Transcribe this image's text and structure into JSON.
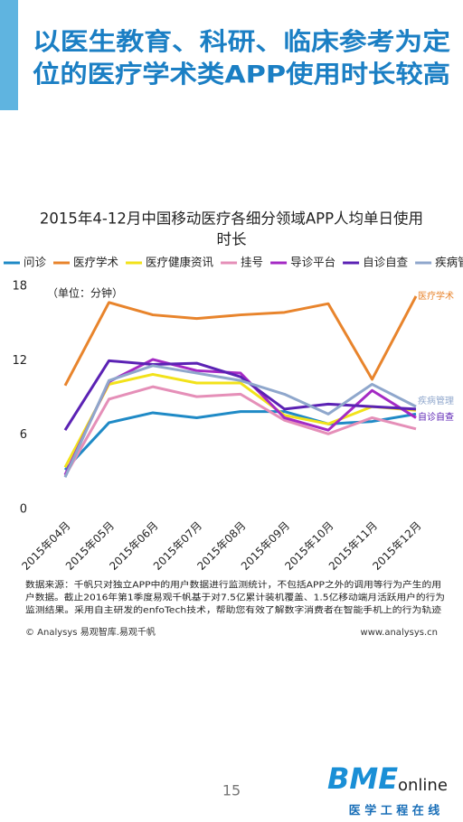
{
  "header": {
    "title_lines": [
      "以医生教育、科研、临床参考为定",
      "位的医疗学术类APP使用时长较高"
    ]
  },
  "chart_data": {
    "type": "line",
    "title_lines": [
      "2015年4-12月中国移动医疗各细分领域APP人均单日使用",
      "时长"
    ],
    "unit": "（单位：分钟）",
    "categories": [
      "2015年04月",
      "2015年05月",
      "2015年06月",
      "2015年07月",
      "2015年08月",
      "2015年09月",
      "2015年10月",
      "2015年11月",
      "2015年12月"
    ],
    "series": [
      {
        "name": "问诊",
        "color": "#1f8ac6",
        "values": [
          3.2,
          7.0,
          7.8,
          7.4,
          7.9,
          7.9,
          6.9,
          7.1,
          7.7
        ]
      },
      {
        "name": "医疗学术",
        "color": "#e8842c",
        "values": [
          10.0,
          16.7,
          15.7,
          15.4,
          15.7,
          15.9,
          16.6,
          10.5,
          17.2
        ]
      },
      {
        "name": "医疗健康资讯",
        "color": "#f2e21a",
        "values": [
          3.4,
          10.1,
          10.9,
          10.2,
          10.2,
          7.6,
          6.9,
          8.3,
          8.0
        ]
      },
      {
        "name": "挂号",
        "color": "#e58fb8",
        "values": [
          2.7,
          8.9,
          9.9,
          9.1,
          9.3,
          7.2,
          6.1,
          7.4,
          6.5
        ]
      },
      {
        "name": "导诊平台",
        "color": "#a42ac4",
        "values": [
          2.8,
          10.3,
          12.1,
          11.2,
          11.0,
          7.4,
          6.4,
          9.6,
          7.4
        ]
      },
      {
        "name": "自诊自查",
        "color": "#5b22b4",
        "values": [
          6.4,
          12.0,
          11.7,
          11.8,
          10.7,
          8.1,
          8.5,
          8.3,
          8.1
        ]
      },
      {
        "name": "疾病管理",
        "color": "#8fa7cc",
        "values": [
          2.6,
          10.4,
          11.6,
          11.0,
          10.4,
          9.3,
          7.7,
          10.1,
          8.3
        ]
      }
    ],
    "end_labels": [
      {
        "series": 1,
        "text": "医疗学术"
      },
      {
        "series": 6,
        "text": "疾病管理"
      },
      {
        "series": 5,
        "text": "自诊自查"
      }
    ],
    "ylim": [
      0,
      18
    ],
    "yticks": [
      0,
      6,
      12,
      18
    ],
    "grid": false
  },
  "footer": {
    "note_lines": [
      "数据来源：千帆只对独立APP中的用户数据进行监测统计，不包括APP之外的调用等行为产生的用",
      "户数据。截止2016年第1季度易观千帆基于对7.5亿累计装机覆盖、1.5亿移动端月活跃用户的行为",
      "监测结果。采用自主研发的enfoTech技术，帮助您有效了解数字消费者在智能手机上的行为轨迹"
    ],
    "source": "© Analysys 易观智库.易观千帆",
    "website": "www.analysys.cn",
    "page_number": "15",
    "logo": {
      "brand": "BME",
      "suffix": "online",
      "tagline": "医 学 工 程 在 线"
    }
  }
}
